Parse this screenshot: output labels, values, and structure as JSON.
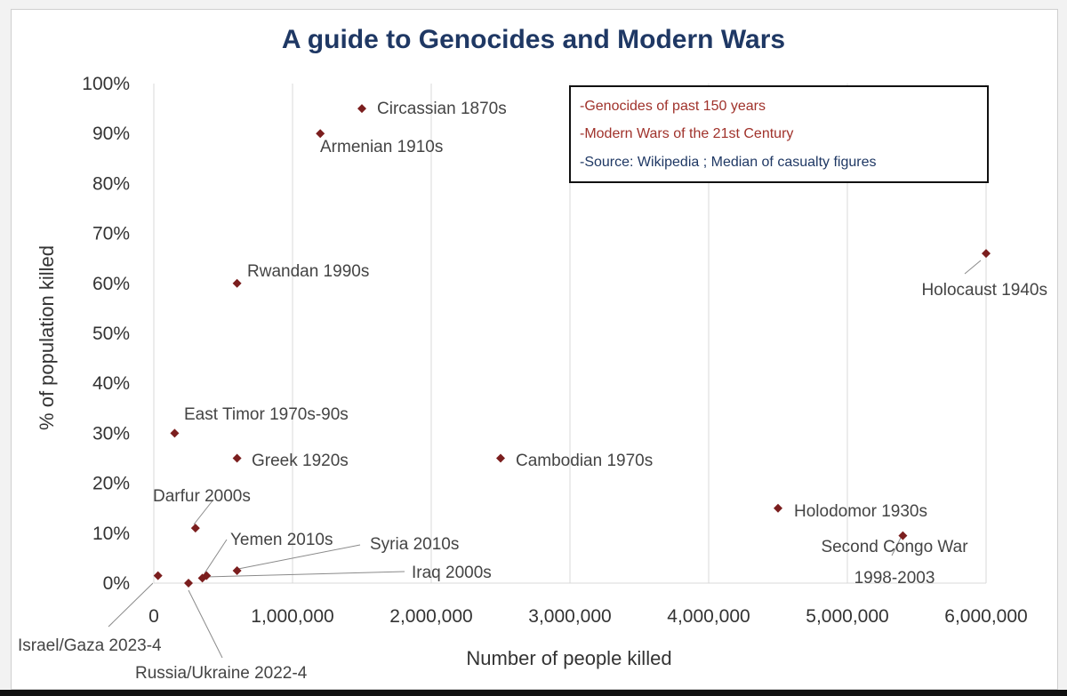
{
  "chart_data": {
    "type": "scatter",
    "title": "A guide to Genocides and Modern Wars",
    "xlabel": "Number of people killed",
    "ylabel": "% of  population killed",
    "xlim": [
      0,
      6000000
    ],
    "ylim": [
      0,
      100
    ],
    "x_ticks": [
      0,
      1000000,
      2000000,
      3000000,
      4000000,
      5000000,
      6000000
    ],
    "x_tick_labels": [
      "0",
      "1,000,000",
      "2,000,000",
      "3,000,000",
      "4,000,000",
      "5,000,000",
      "6,000,000"
    ],
    "y_ticks": [
      0,
      10,
      20,
      30,
      40,
      50,
      60,
      70,
      80,
      90,
      100
    ],
    "y_tick_labels": [
      "0%",
      "10%",
      "20%",
      "30%",
      "40%",
      "50%",
      "60%",
      "70%",
      "80%",
      "90%",
      "100%"
    ],
    "grid": "vertical",
    "marker_color": "#7b1e1e",
    "points": [
      {
        "label": "Circassian 1870s",
        "x": 1500000,
        "y": 95
      },
      {
        "label": "Armenian 1910s",
        "x": 1200000,
        "y": 90
      },
      {
        "label": "Rwandan 1990s",
        "x": 600000,
        "y": 60
      },
      {
        "label": "Holocaust 1940s",
        "x": 6000000,
        "y": 66
      },
      {
        "label": "East Timor 1970s-90s",
        "x": 150000,
        "y": 30
      },
      {
        "label": "Greek 1920s",
        "x": 600000,
        "y": 25
      },
      {
        "label": "Cambodian 1970s",
        "x": 2500000,
        "y": 25
      },
      {
        "label": "Darfur 2000s",
        "x": 300000,
        "y": 11
      },
      {
        "label": "Holodomor 1930s",
        "x": 4500000,
        "y": 15
      },
      {
        "label": "Second Congo War 1998-2003",
        "x": 5400000,
        "y": 9.5
      },
      {
        "label": "Yemen 2010s",
        "x": 380000,
        "y": 1.5
      },
      {
        "label": "Syria 2010s",
        "x": 600000,
        "y": 2.5
      },
      {
        "label": "Iraq 2000s",
        "x": 350000,
        "y": 1
      },
      {
        "label": "Israel/Gaza 2023-4",
        "x": 30000,
        "y": 1.5
      },
      {
        "label": "Russia/Ukraine 2022-4",
        "x": 250000,
        "y": 0
      }
    ]
  },
  "legend": {
    "items": [
      {
        "text": "-Genocides of past 150 years",
        "color": "#a0322b"
      },
      {
        "text": "-Modern Wars of the 21st Century",
        "color": "#a0322b"
      },
      {
        "text": "-Source: Wikipedia ; Median of casualty figures",
        "color": "#1f3864"
      }
    ]
  },
  "labels": {
    "circassian": "Circassian 1870s",
    "armenian": "Armenian 1910s",
    "rwandan": "Rwandan 1990s",
    "holocaust": "Holocaust 1940s",
    "east_timor": "East Timor 1970s-90s",
    "greek": "Greek 1920s",
    "cambodian": "Cambodian 1970s",
    "darfur": "Darfur 2000s",
    "holodomor": "Holodomor 1930s",
    "congo_line1": "Second Congo War",
    "congo_line2": "1998-2003",
    "yemen": "Yemen 2010s",
    "syria": "Syria 2010s",
    "iraq": "Iraq 2000s",
    "israel": "Israel/Gaza 2023-4",
    "russia": "Russia/Ukraine 2022-4"
  }
}
